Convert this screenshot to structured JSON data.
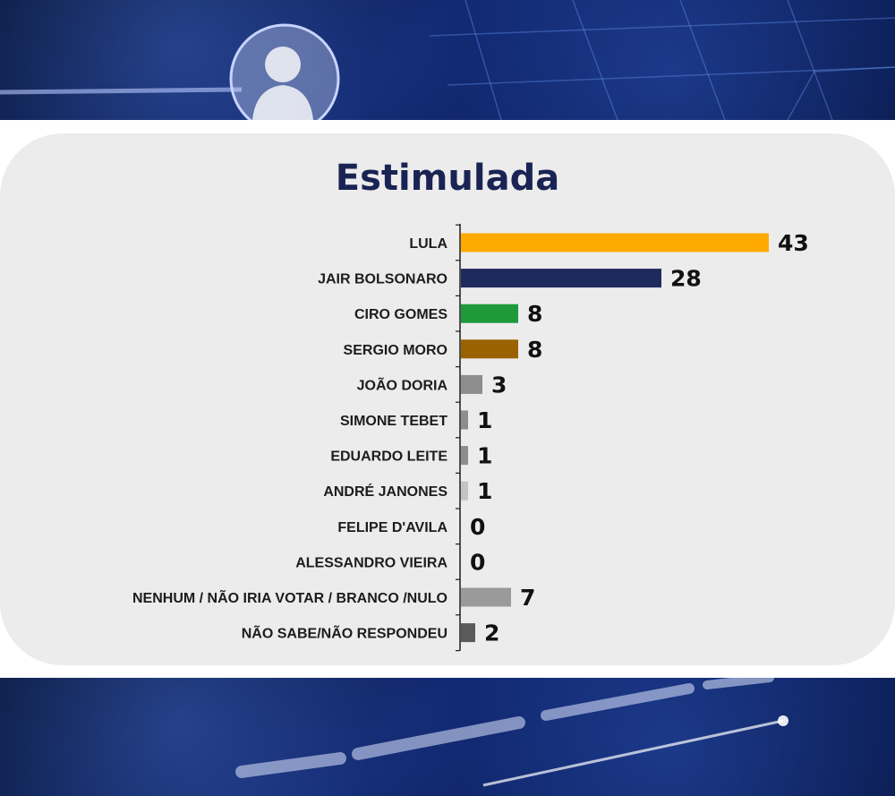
{
  "chart_data": {
    "type": "bar",
    "orientation": "horizontal",
    "title": "Estimulada",
    "categories": [
      "LULA",
      "JAIR BOLSONARO",
      "CIRO GOMES",
      "SERGIO MORO",
      "JOÃO DORIA",
      "SIMONE TEBET",
      "EDUARDO LEITE",
      "ANDRÉ JANONES",
      "FELIPE D'AVILA",
      "ALESSANDRO VIEIRA",
      "NENHUM / NÃO IRIA VOTAR / BRANCO /NULO",
      "NÃO SABE/NÃO RESPONDEU"
    ],
    "values": [
      43,
      28,
      8,
      8,
      3,
      1,
      1,
      1,
      0,
      0,
      7,
      2
    ],
    "colors": [
      "#ffaa00",
      "#1f2a5c",
      "#1e9a3a",
      "#9a6200",
      "#8d8d8d",
      "#8d8d8d",
      "#8d8d8d",
      "#c4c4c4",
      "#c4c4c4",
      "#c4c4c4",
      "#9a9a9a",
      "#5a5a5a"
    ],
    "xlim": [
      0,
      43
    ],
    "grid": false,
    "legend": "none"
  }
}
